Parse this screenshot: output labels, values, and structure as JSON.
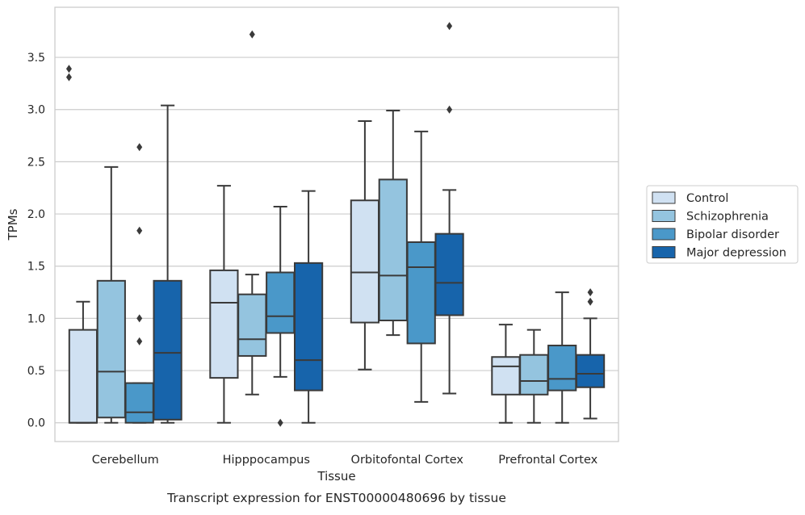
{
  "chart_data": {
    "type": "box",
    "xlabel": "Tissue",
    "ylabel": "TPMs",
    "caption": "Transcript expression for ENST00000480696 by tissue",
    "ylim": [
      -0.18,
      3.98
    ],
    "yticks": [
      0.0,
      0.5,
      1.0,
      1.5,
      2.0,
      2.5,
      3.0,
      3.5
    ],
    "ytick_labels": [
      "0.0",
      "0.5",
      "1.0",
      "1.5",
      "2.0",
      "2.5",
      "3.0",
      "3.5"
    ],
    "grid": "horizontal",
    "legend_position": "right",
    "categories": [
      "Cerebellum",
      "Hipppocampus",
      "Orbitofontal Cortex",
      "Prefrontal Cortex"
    ],
    "series": [
      {
        "name": "Control",
        "color": "#d0e1f2",
        "boxes": [
          {
            "whislo": 0.0,
            "q1": 0.0,
            "med": 0.0,
            "q3": 0.89,
            "whishi": 1.16,
            "fliers": []
          },
          {
            "whislo": 0.0,
            "q1": 0.43,
            "med": 1.15,
            "q3": 1.46,
            "whishi": 2.27,
            "fliers": []
          },
          {
            "whislo": 0.51,
            "q1": 0.96,
            "med": 1.44,
            "q3": 2.13,
            "whishi": 2.89,
            "fliers": []
          },
          {
            "whislo": 0.0,
            "q1": 0.27,
            "med": 0.54,
            "q3": 0.63,
            "whishi": 0.94,
            "fliers": []
          }
        ]
      },
      {
        "name": "Schizophrenia",
        "color": "#94c4df",
        "boxes": [
          {
            "whislo": 0.0,
            "q1": 0.05,
            "med": 0.49,
            "q3": 1.36,
            "whishi": 2.45,
            "fliers": []
          },
          {
            "whislo": 0.27,
            "q1": 0.64,
            "med": 0.8,
            "q3": 1.23,
            "whishi": 1.42,
            "fliers": [
              3.72
            ]
          },
          {
            "whislo": 0.84,
            "q1": 0.98,
            "med": 1.41,
            "q3": 2.33,
            "whishi": 2.99,
            "fliers": []
          },
          {
            "whislo": 0.0,
            "q1": 0.27,
            "med": 0.4,
            "q3": 0.65,
            "whishi": 0.89,
            "fliers": []
          }
        ]
      },
      {
        "name": "Bipolar disorder",
        "color": "#4a98c9",
        "boxes": [
          {
            "whislo": 0.0,
            "q1": 0.0,
            "med": 0.1,
            "q3": 0.38,
            "whishi": 0.38,
            "fliers": [
              0.78,
              1.0,
              1.84,
              2.64
            ]
          },
          {
            "whislo": 0.44,
            "q1": 0.86,
            "med": 1.02,
            "q3": 1.44,
            "whishi": 2.07,
            "fliers": [
              0.0
            ]
          },
          {
            "whislo": 0.2,
            "q1": 0.76,
            "med": 1.49,
            "q3": 1.73,
            "whishi": 2.79,
            "fliers": []
          },
          {
            "whislo": 0.0,
            "q1": 0.31,
            "med": 0.42,
            "q3": 0.74,
            "whishi": 1.25,
            "fliers": []
          }
        ]
      },
      {
        "name": "Major depression",
        "color": "#1764ab",
        "boxes": [
          {
            "whislo": 0.0,
            "q1": 0.03,
            "med": 0.67,
            "q3": 1.36,
            "whishi": 3.04,
            "fliers": []
          },
          {
            "whislo": 0.0,
            "q1": 0.31,
            "med": 0.6,
            "q3": 1.53,
            "whishi": 2.22,
            "fliers": []
          },
          {
            "whislo": 0.28,
            "q1": 1.03,
            "med": 1.34,
            "q3": 1.81,
            "whishi": 2.23,
            "fliers": [
              3.0,
              3.8
            ]
          },
          {
            "whislo": 0.04,
            "q1": 0.34,
            "med": 0.47,
            "q3": 0.65,
            "whishi": 1.0,
            "fliers": [
              1.16,
              1.25
            ]
          }
        ]
      }
    ],
    "extra_fliers": [
      {
        "category": "Cerebellum",
        "y": [
          3.31,
          3.39
        ]
      }
    ]
  }
}
